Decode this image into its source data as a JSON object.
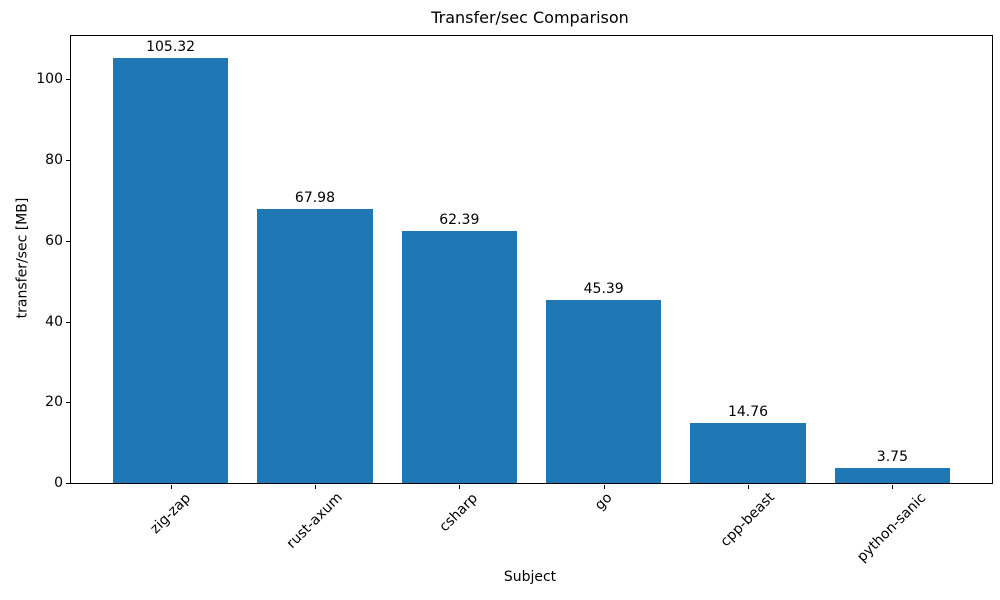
{
  "chart_data": {
    "type": "bar",
    "title": "Transfer/sec Comparison",
    "xlabel": "Subject",
    "ylabel": "transfer/sec [MB]",
    "categories": [
      "zig-zap",
      "rust-axum",
      "csharp",
      "go",
      "cpp-beast",
      "python-sanic"
    ],
    "values": [
      105.32,
      67.98,
      62.39,
      45.39,
      14.76,
      3.75
    ],
    "bar_labels": [
      "105.32",
      "67.98",
      "62.39",
      "45.39",
      "14.76",
      "3.75"
    ],
    "yticks": [
      0,
      20,
      40,
      60,
      80,
      100
    ],
    "ylim": [
      0,
      110.75
    ],
    "x_tick_rotation_deg": 45,
    "grid": false,
    "legend_position": "none",
    "bar_color": "#1f77b4",
    "axis_color": "#000000",
    "text_color": "#000000",
    "background_color": "#ffffff"
  }
}
